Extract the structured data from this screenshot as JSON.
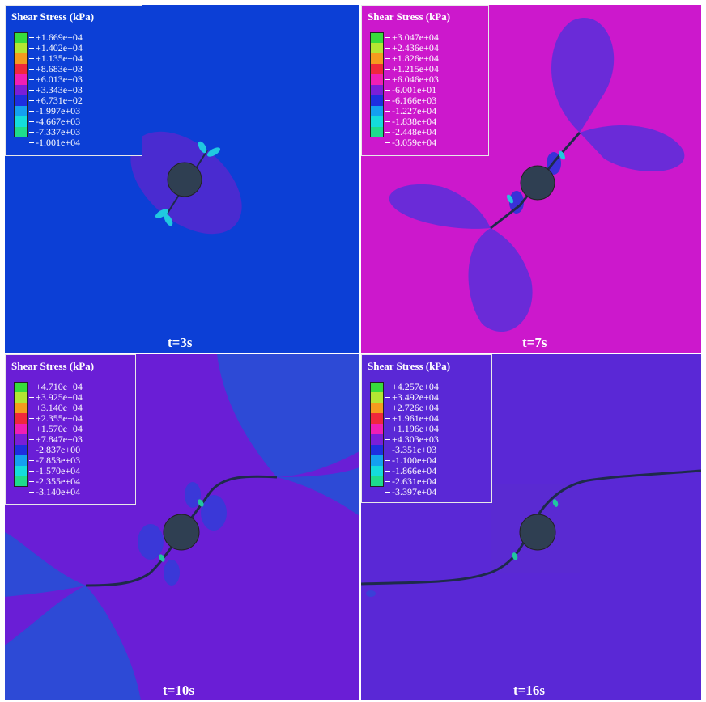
{
  "figure": {
    "panels": [
      {
        "id": "t3",
        "time_label": "t=3s",
        "background": "#0c3fd6",
        "legend": {
          "title": "Shear Stress (kPa)",
          "values": [
            "+1.669e+04",
            "+1.402e+04",
            "+1.135e+04",
            "+8.683e+03",
            "+6.013e+03",
            "+3.343e+03",
            "+6.731e+02",
            "-1.997e+03",
            "-4.667e+03",
            "-7.337e+03",
            "-1.001e+04"
          ]
        }
      },
      {
        "id": "t7",
        "time_label": "t=7s",
        "background": "#cc18cc",
        "legend": {
          "title": "Shear Stress (kPa)",
          "values": [
            "+3.047e+04",
            "+2.436e+04",
            "+1.826e+04",
            "+1.215e+04",
            "+6.046e+03",
            "-6.001e+01",
            "-6.166e+03",
            "-1.227e+04",
            "-1.838e+04",
            "-2.448e+04",
            "-3.059e+04"
          ]
        }
      },
      {
        "id": "t10",
        "time_label": "t=10s",
        "background": "#6a1ed6",
        "legend": {
          "title": "Shear Stress (kPa)",
          "values": [
            "+4.710e+04",
            "+3.925e+04",
            "+3.140e+04",
            "+2.355e+04",
            "+1.570e+04",
            "+7.847e+03",
            "-2.837e+00",
            "-7.853e+03",
            "-1.570e+04",
            "-2.355e+04",
            "-3.140e+04"
          ]
        }
      },
      {
        "id": "t16",
        "time_label": "t=16s",
        "background": "#5a28d6",
        "legend": {
          "title": "Shear Stress (kPa)",
          "values": [
            "+4.257e+04",
            "+3.492e+04",
            "+2.726e+04",
            "+1.961e+04",
            "+1.196e+04",
            "+4.303e+03",
            "-3.351e+03",
            "-1.100e+04",
            "-1.866e+04",
            "-2.631e+04",
            "-3.397e+04"
          ]
        }
      }
    ],
    "colorbar": [
      "#37dc3c",
      "#b4e632",
      "#f59b1e",
      "#f0283c",
      "#f01eb4",
      "#7a1ed8",
      "#1e2ee0",
      "#14a0f0",
      "#14dcdc",
      "#1edc8c",
      "#32dc32"
    ]
  }
}
